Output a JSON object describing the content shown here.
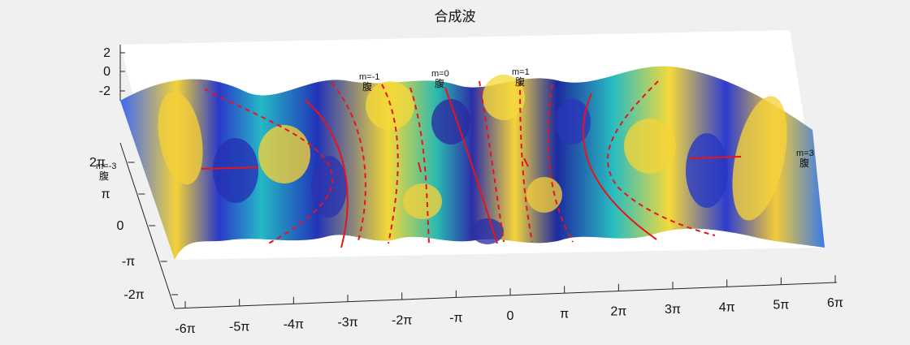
{
  "chart_data": {
    "type": "surface",
    "title": "合成波",
    "xlabel": "",
    "ylabel": "",
    "zlabel": "",
    "x_range": [
      "-6π",
      "6π"
    ],
    "y_range": [
      "-2π",
      "2π"
    ],
    "z_range": [
      -2,
      2
    ],
    "x_ticks": [
      "-6π",
      "-5π",
      "-4π",
      "-3π",
      "-2π",
      "-π",
      "0",
      "π",
      "2π",
      "3π",
      "4π",
      "5π",
      "6π"
    ],
    "y_ticks": [
      "-2π",
      "-π",
      "0",
      "π",
      "2π"
    ],
    "z_ticks": [
      "2",
      "0",
      "-2"
    ],
    "colormap": "parula",
    "colors": {
      "line": "#e8141c",
      "background": "#f0f0f0",
      "panel": "#ffffff"
    },
    "annotations": [
      {
        "m": "m=-3",
        "label": "腹"
      },
      {
        "m": "m=-1",
        "label": "腹"
      },
      {
        "m": "m=0",
        "label": "腹"
      },
      {
        "m": "m=1",
        "label": "腹"
      },
      {
        "m": "m=3",
        "label": "腹"
      }
    ]
  }
}
